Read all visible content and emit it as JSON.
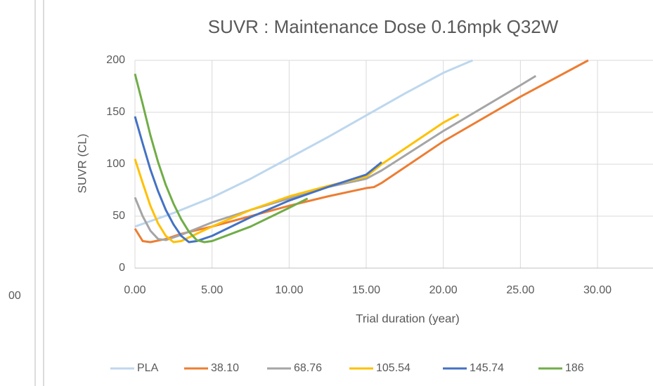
{
  "fragment": "00",
  "chart_data": {
    "type": "line",
    "title": "SUVR : Maintenance Dose 0.16mpk Q32W",
    "x_label": "Trial duration (year)",
    "y_label": "SUVR (CL)",
    "xlim": [
      0,
      33.6
    ],
    "ylim": [
      0,
      200
    ],
    "xticks": [
      {
        "value": 0,
        "label": "0.00"
      },
      {
        "value": 5,
        "label": "5.00"
      },
      {
        "value": 10,
        "label": "10.00"
      },
      {
        "value": 15,
        "label": "15.00"
      },
      {
        "value": 20,
        "label": "20.00"
      },
      {
        "value": 25,
        "label": "25.00"
      },
      {
        "value": 30,
        "label": "30.00"
      }
    ],
    "yticks": [
      0,
      50,
      100,
      150,
      200
    ],
    "grid": true,
    "legend": "bottom",
    "series": [
      {
        "name": "PLA",
        "color": "#bdd7ee",
        "x": [
          0,
          2.5,
          5,
          7.5,
          10,
          12.5,
          15,
          17.5,
          20,
          21.9
        ],
        "values": [
          40,
          53,
          68,
          86,
          106,
          126,
          147,
          168,
          188,
          200
        ]
      },
      {
        "name": "38.10",
        "color": "#ed7d31",
        "x": [
          0,
          0.5,
          1,
          2,
          3,
          5,
          7.5,
          10,
          12.5,
          15,
          15.5,
          16,
          20,
          25,
          29.4
        ],
        "values": [
          38,
          26,
          25,
          28,
          33,
          40,
          50,
          60,
          69,
          77,
          78,
          82,
          122,
          165,
          200
        ]
      },
      {
        "name": "68.76",
        "color": "#a5a5a5",
        "x": [
          0,
          0.5,
          1,
          1.5,
          2,
          3,
          5,
          7.5,
          10,
          12.5,
          15,
          16,
          20,
          25,
          26
        ],
        "values": [
          68,
          50,
          36,
          28,
          27,
          32,
          44,
          56,
          67,
          78,
          86,
          94,
          132,
          176,
          185
        ]
      },
      {
        "name": "105.54",
        "color": "#ffc000",
        "x": [
          0,
          0.5,
          1,
          1.5,
          2,
          2.5,
          3,
          5,
          7.5,
          10,
          12.5,
          15,
          16,
          20,
          21
        ],
        "values": [
          105,
          82,
          60,
          43,
          31,
          25,
          26,
          40,
          56,
          69,
          79,
          88,
          100,
          140,
          148
        ]
      },
      {
        "name": "145.74",
        "color": "#4472c4",
        "x": [
          0,
          0.5,
          1,
          1.5,
          2,
          2.5,
          3,
          3.5,
          4,
          5,
          7.5,
          10,
          12.5,
          15,
          16
        ],
        "values": [
          146,
          120,
          95,
          74,
          56,
          42,
          31,
          25,
          26,
          31,
          49,
          65,
          78,
          90,
          102
        ]
      },
      {
        "name": "186",
        "color": "#70ad47",
        "x": [
          0,
          0.5,
          1,
          1.5,
          2,
          2.5,
          3,
          3.5,
          4,
          4.5,
          5,
          7.5,
          10,
          11.2
        ],
        "values": [
          187,
          158,
          128,
          102,
          80,
          62,
          47,
          35,
          27,
          25,
          26,
          40,
          58,
          67
        ]
      }
    ]
  }
}
